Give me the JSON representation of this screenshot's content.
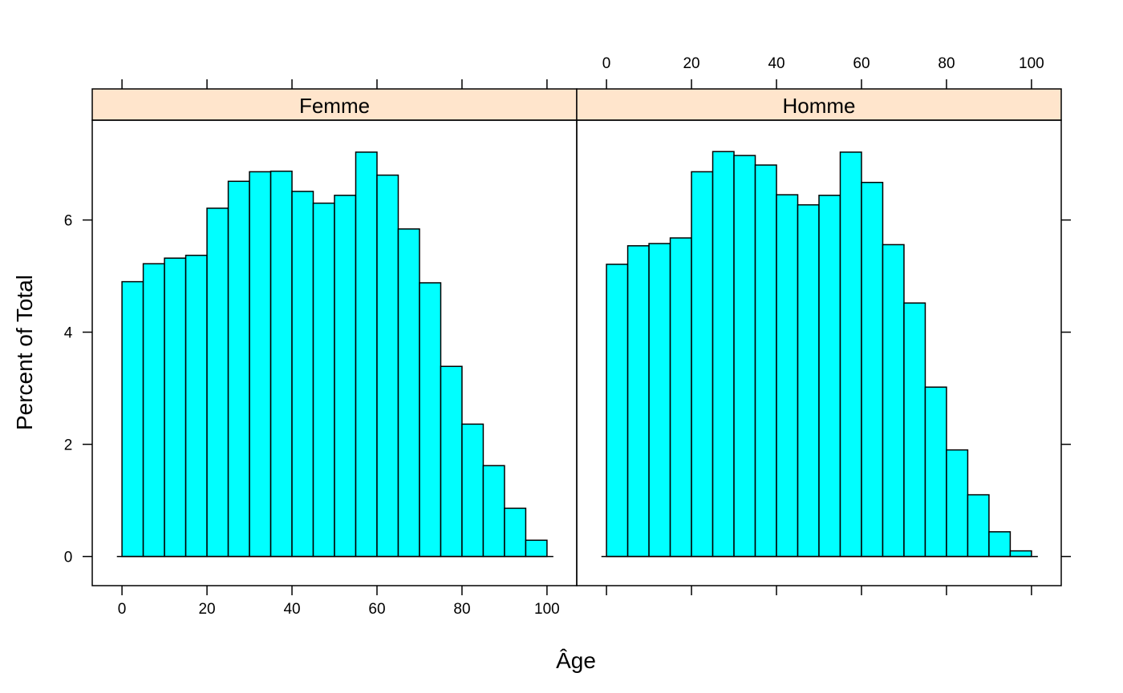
{
  "chart_data": {
    "type": "bar",
    "chart_kind": "lattice histogram",
    "xlabel": "Âge",
    "ylabel": "Percent of Total",
    "xlim": [
      -7,
      107
    ],
    "ylim": [
      -0.52,
      7.78
    ],
    "x_ticks": [
      0,
      20,
      40,
      60,
      80,
      100
    ],
    "y_ticks": [
      0,
      2,
      4,
      6
    ],
    "bin_edges": [
      0,
      5,
      10,
      15,
      20,
      25,
      30,
      35,
      40,
      45,
      50,
      55,
      60,
      65,
      70,
      75,
      80,
      85,
      90,
      95,
      100
    ],
    "colors": {
      "bar_fill": "#00FFFF",
      "bar_stroke": "#000000",
      "strip_bg": "#FFE5CC"
    },
    "panels": [
      {
        "name": "Femme",
        "values": [
          4.9,
          5.22,
          5.32,
          5.37,
          6.21,
          6.69,
          6.86,
          6.87,
          6.51,
          6.3,
          6.44,
          7.21,
          6.8,
          5.84,
          4.88,
          3.39,
          2.36,
          1.62,
          0.86,
          0.29
        ]
      },
      {
        "name": "Homme",
        "values": [
          5.21,
          5.54,
          5.58,
          5.68,
          6.86,
          7.22,
          7.15,
          6.98,
          6.45,
          6.27,
          6.44,
          7.21,
          6.67,
          5.56,
          4.52,
          3.02,
          1.9,
          1.1,
          0.44,
          0.1
        ]
      }
    ]
  }
}
